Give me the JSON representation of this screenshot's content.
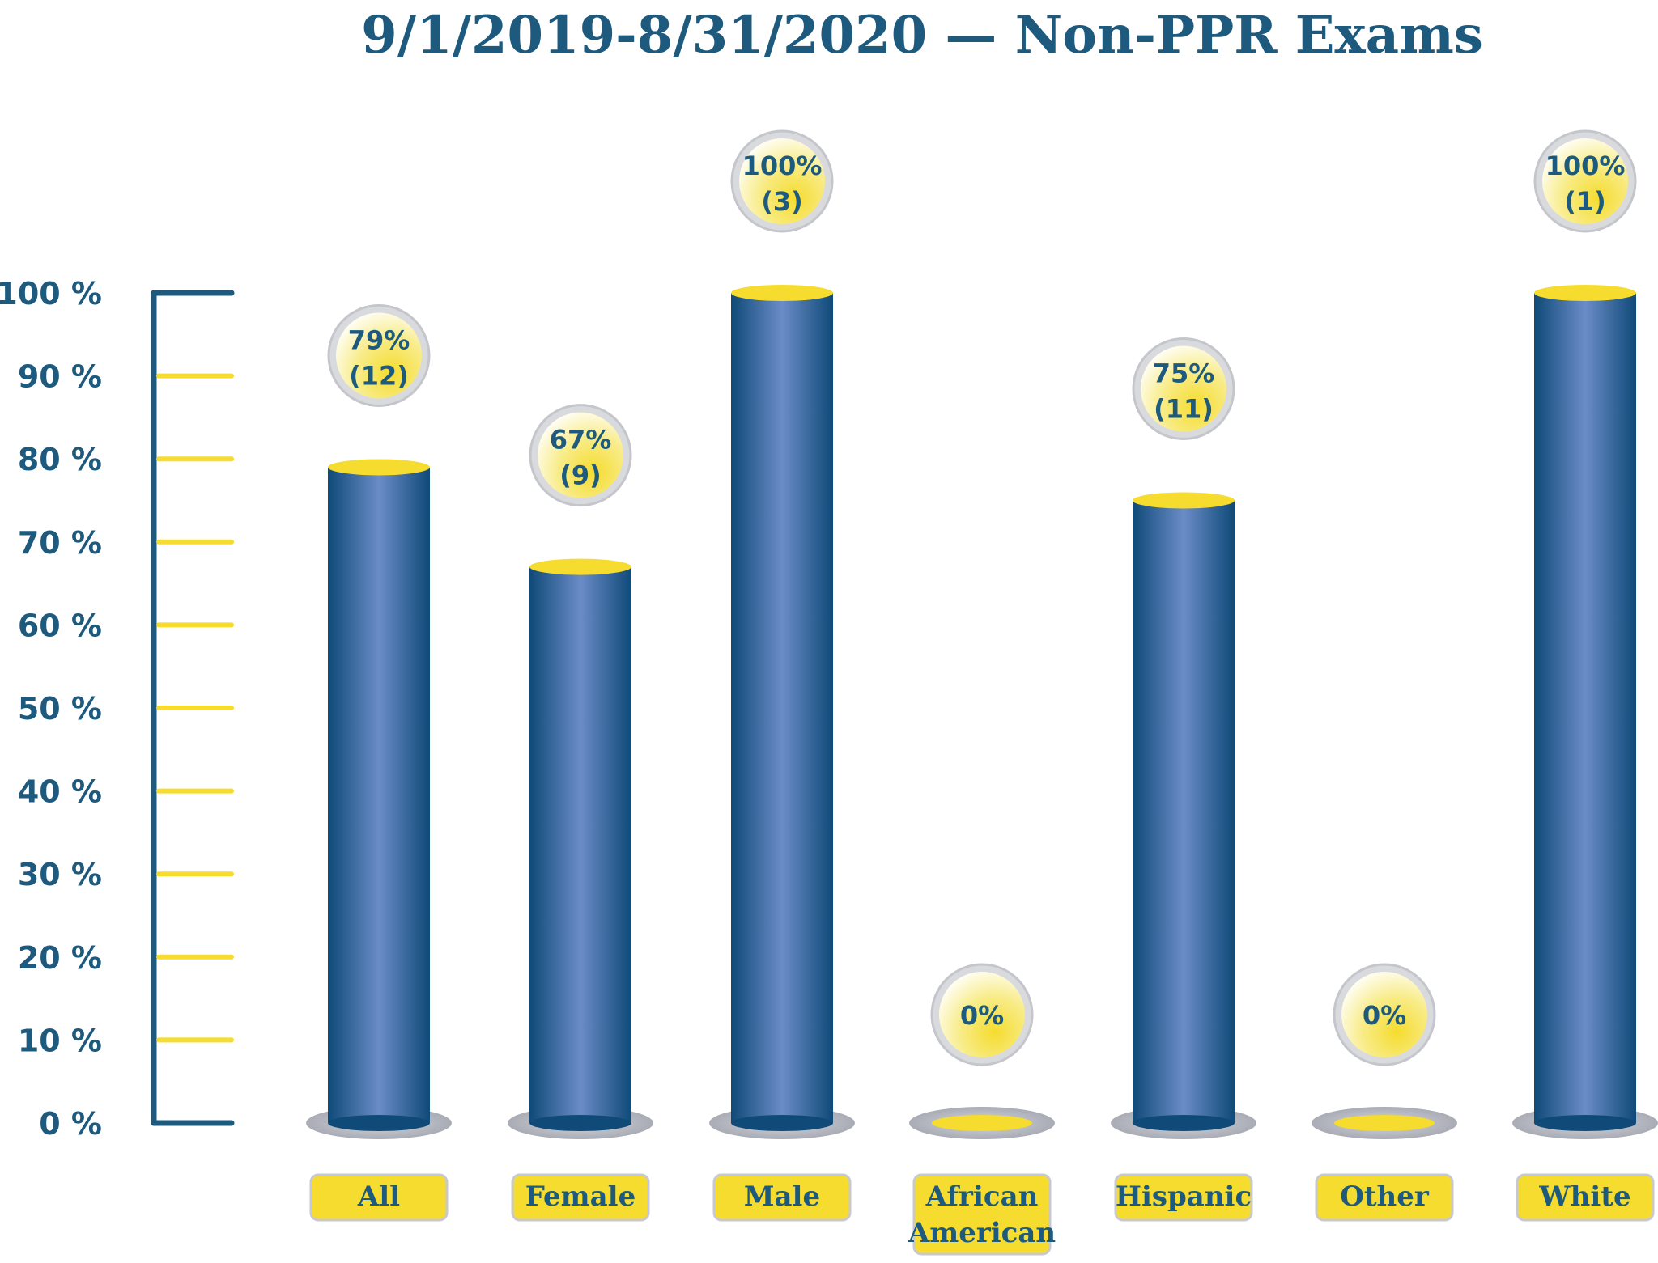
{
  "chart_data": {
    "type": "bar",
    "title": "9/1/2019-8/31/2020 — Non-PPR Exams",
    "xlabel": "",
    "ylabel": "",
    "ylim": [
      0,
      100
    ],
    "yticks": [
      "0 %",
      "10 %",
      "20 %",
      "30 %",
      "40 %",
      "50 %",
      "60 %",
      "70 %",
      "80 %",
      "90 %",
      "100 %"
    ],
    "categories": [
      [
        "All"
      ],
      [
        "Female"
      ],
      [
        "Male"
      ],
      [
        "African",
        "American"
      ],
      [
        "Hispanic"
      ],
      [
        "Other"
      ],
      [
        "White"
      ]
    ],
    "values": [
      79,
      67,
      100,
      0,
      75,
      0,
      100
    ],
    "data_labels": [
      [
        "79%",
        "(12)"
      ],
      [
        "67%",
        "(9)"
      ],
      [
        "100%",
        "(3)"
      ],
      [
        "0%"
      ],
      [
        "75%",
        "(11)"
      ],
      [
        "0%"
      ],
      [
        "100%",
        "(1)"
      ]
    ],
    "grid": false,
    "colors": {
      "bar": "#124f7e",
      "bar_highlight": "#6b8cc7",
      "cap": "#f5dc2e",
      "axis": "#1d5a7d",
      "tick": "#f5dc2e",
      "text": "#1d5a7d",
      "base": "#b9bbc2"
    }
  }
}
